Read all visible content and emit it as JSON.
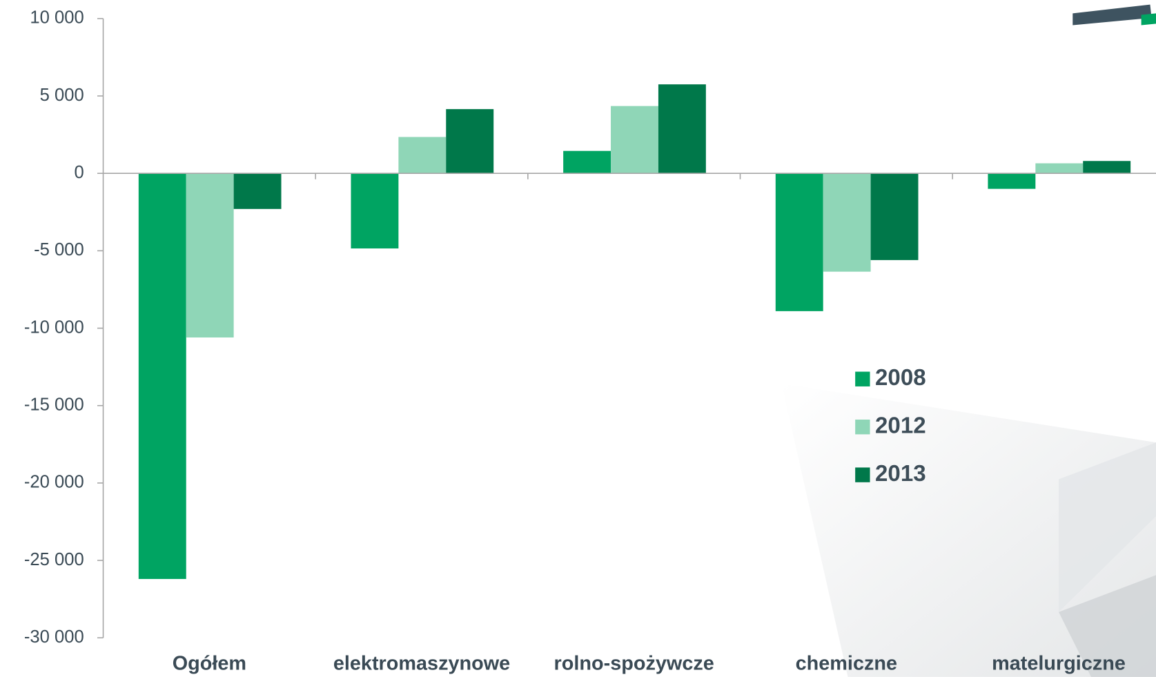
{
  "chart_data": {
    "type": "bar",
    "categories": [
      "Ogółem",
      "elektromaszynowe",
      "rolno-spożywcze",
      "chemiczne",
      "matelurgiczne"
    ],
    "series": [
      {
        "name": "2008",
        "color": "#00a462",
        "values": [
          -26200,
          -4850,
          1450,
          -8900,
          -1000
        ]
      },
      {
        "name": "2012",
        "color": "#8fd6b7",
        "values": [
          -10600,
          2350,
          4350,
          -6350,
          650
        ]
      },
      {
        "name": "2013",
        "color": "#00784a",
        "values": [
          -2300,
          4150,
          5750,
          -5600,
          800
        ]
      }
    ],
    "ylim": [
      -30000,
      10000
    ],
    "yticks": [
      {
        "value": -30000,
        "label": "-30 000"
      },
      {
        "value": -25000,
        "label": "-25 000"
      },
      {
        "value": -20000,
        "label": "-20 000"
      },
      {
        "value": -15000,
        "label": "-15 000"
      },
      {
        "value": -10000,
        "label": "-10 000"
      },
      {
        "value": -5000,
        "label": "-5 000"
      },
      0,
      {
        "value": 5000,
        "label": "5 000"
      },
      {
        "value": 10000,
        "label": "10 000"
      }
    ],
    "grid": false,
    "legend": "right"
  }
}
